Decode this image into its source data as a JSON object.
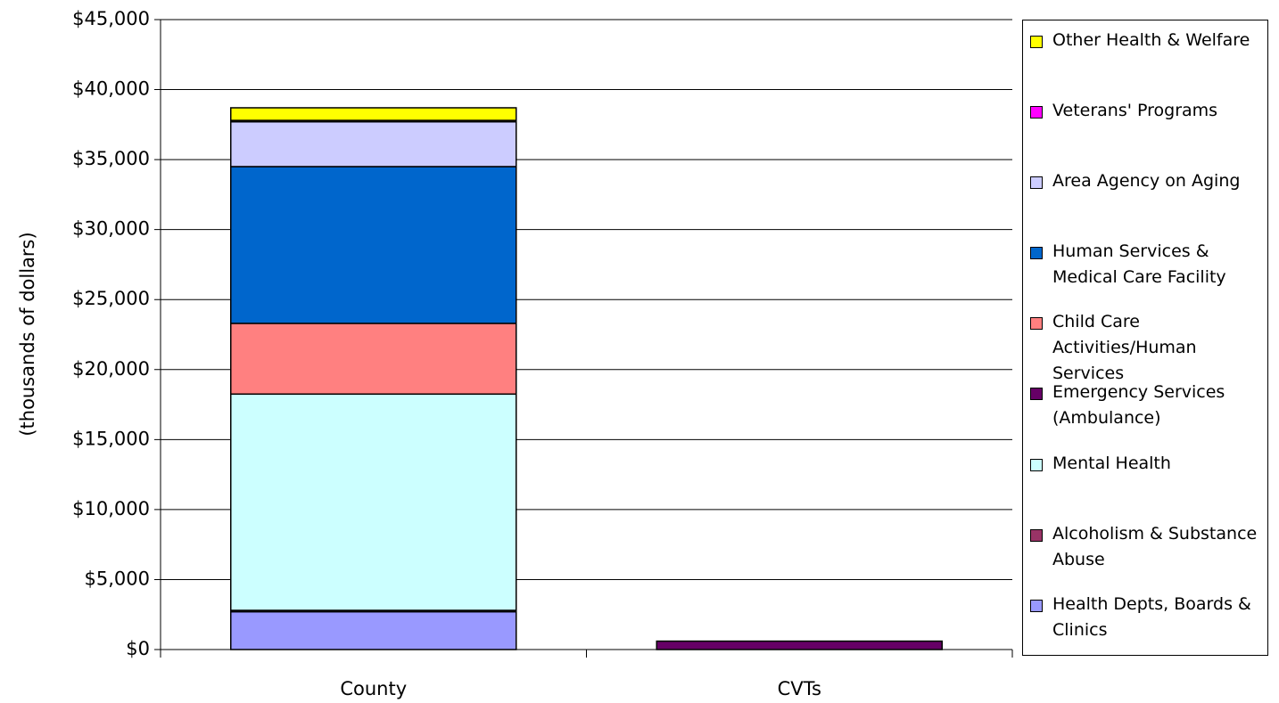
{
  "chart_data": {
    "type": "stacked-bar",
    "y_label": "(thousands of dollars)",
    "categories": [
      "County",
      "CVTs"
    ],
    "series": [
      {
        "name": "Health Depts, Boards & Clinics",
        "color": "#9999ff",
        "values": [
          2700,
          0
        ]
      },
      {
        "name": "Alcoholism & Substance Abuse",
        "color": "#993366",
        "values": [
          100,
          0
        ]
      },
      {
        "name": "Mental Health",
        "color": "#ccffff",
        "values": [
          15450,
          0
        ]
      },
      {
        "name": "Emergency Services (Ambulance)",
        "color": "#660066",
        "values": [
          0,
          600
        ]
      },
      {
        "name": "Child Care Activities/Human Services",
        "color": "#ff8080",
        "values": [
          5050,
          0
        ]
      },
      {
        "name": "Human Services & Medical Care Facility",
        "color": "#0066cc",
        "values": [
          11200,
          0
        ]
      },
      {
        "name": "Area Agency on Aging",
        "color": "#ccccff",
        "values": [
          3200,
          0
        ]
      },
      {
        "name": "Veterans' Programs",
        "color": "#ff00ff",
        "values": [
          100,
          0
        ]
      },
      {
        "name": "Other Health & Welfare",
        "color": "#ffff00",
        "values": [
          900,
          0
        ]
      }
    ],
    "ylim": [
      0,
      45000
    ],
    "yticks": [
      {
        "value": 0,
        "label": "$0"
      },
      {
        "value": 5000,
        "label": "$5,000"
      },
      {
        "value": 10000,
        "label": "$10,000"
      },
      {
        "value": 15000,
        "label": "$15,000"
      },
      {
        "value": 20000,
        "label": "$20,000"
      },
      {
        "value": 25000,
        "label": "$25,000"
      },
      {
        "value": 30000,
        "label": "$30,000"
      },
      {
        "value": 35000,
        "label": "$35,000"
      },
      {
        "value": 40000,
        "label": "$40,000"
      },
      {
        "value": 45000,
        "label": "$45,000"
      }
    ],
    "grid": true
  }
}
